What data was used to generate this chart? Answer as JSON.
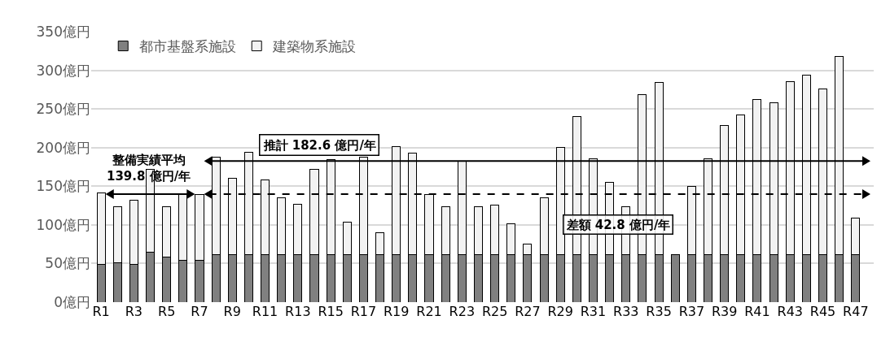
{
  "chart_data": {
    "type": "bar",
    "stacked": true,
    "categories": [
      "R1",
      null,
      "R3",
      null,
      "R5",
      null,
      "R7",
      null,
      "R9",
      null,
      "R11",
      null,
      "R13",
      null,
      "R15",
      null,
      "R17",
      null,
      "R19",
      null,
      "R21",
      null,
      "R23",
      null,
      "R25",
      null,
      "R27",
      null,
      "R29",
      null,
      "R31",
      null,
      "R33",
      null,
      "R35",
      null,
      "R37",
      null,
      "R39",
      null,
      "R41",
      null,
      "R43",
      null,
      "R45",
      null,
      "R47"
    ],
    "series": [
      {
        "name": "都市基盤系施設",
        "color": "#808080",
        "values": [
          49,
          51,
          49,
          65,
          58,
          54,
          54,
          61,
          61,
          61,
          61,
          61,
          61,
          61,
          61,
          61,
          61,
          61,
          61,
          61,
          61,
          61,
          61,
          61,
          61,
          61,
          61,
          61,
          61,
          61,
          61,
          61,
          61,
          61,
          61,
          61,
          61,
          61,
          61,
          61,
          61,
          61,
          61,
          61,
          61,
          61,
          61
        ]
      },
      {
        "name": "建築物系施設",
        "color": "#f2f2f2",
        "values": [
          92,
          73,
          83,
          107,
          66,
          85,
          85,
          127,
          99,
          133,
          97,
          74,
          66,
          111,
          123,
          43,
          127,
          29,
          140,
          132,
          78,
          62,
          121,
          62,
          65,
          40,
          14,
          74,
          139,
          179,
          125,
          94,
          63,
          208,
          223,
          null,
          89,
          125,
          168,
          181,
          201,
          197,
          224,
          233,
          215,
          257,
          48
        ]
      }
    ],
    "ylim": [
      0,
      350
    ],
    "yticks": [
      {
        "value": 0,
        "label": "0億円"
      },
      {
        "value": 50,
        "label": "50億円"
      },
      {
        "value": 100,
        "label": "100億円"
      },
      {
        "value": 150,
        "label": "150億円"
      },
      {
        "value": 200,
        "label": "200億円"
      },
      {
        "value": 250,
        "label": "250億円"
      },
      {
        "value": 300,
        "label": "300億円"
      },
      {
        "value": 350,
        "label": "350億円"
      }
    ],
    "grid": "y",
    "legend": "top left",
    "ref_lines": [
      {
        "axis": "y",
        "value": 182.6,
        "label": "推計 182.6 億円/年",
        "line_style": "solid"
      },
      {
        "axis": "y",
        "value": 139.8,
        "label": "整備実績平均\n139.8 億円/年",
        "line_style": "dashed"
      }
    ],
    "annotations": [
      "差額 42.8 億円/年"
    ]
  }
}
